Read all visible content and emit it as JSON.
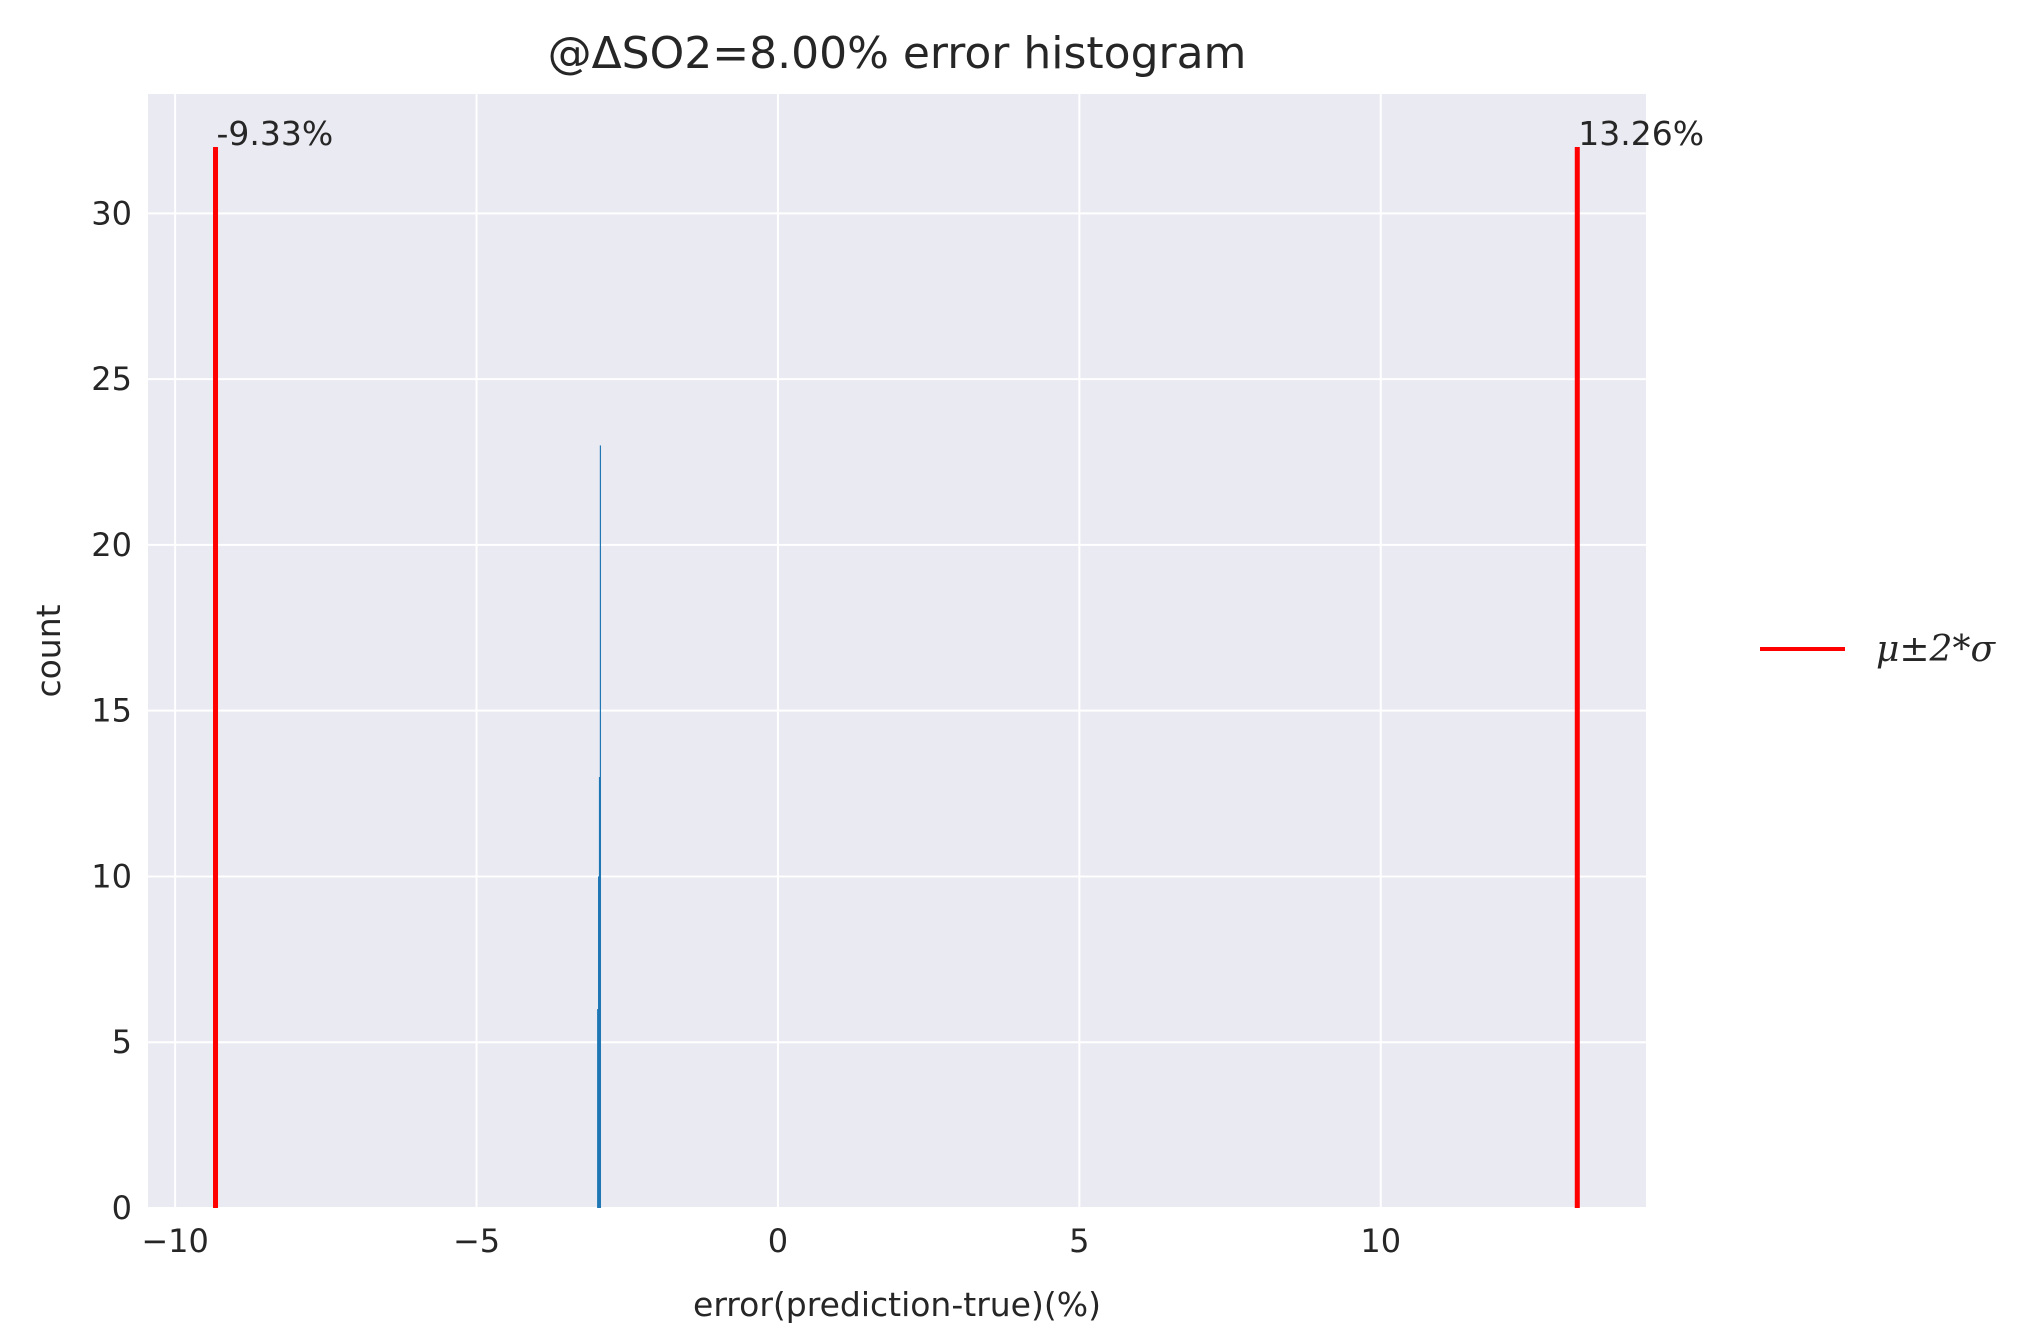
{
  "chart_data": {
    "type": "bar",
    "title": "@ΔSO2=8.00% error histogram",
    "xlabel": "error(prediction-true)(%)",
    "ylabel": "count",
    "xlim": [
      -10.45,
      14.4
    ],
    "ylim": [
      0,
      33.6
    ],
    "grid": true,
    "xticks": [
      {
        "value": -10,
        "label": "−10"
      },
      {
        "value": -5,
        "label": "−5"
      },
      {
        "value": 0,
        "label": "0"
      },
      {
        "value": 5,
        "label": "5"
      },
      {
        "value": 10,
        "label": "10"
      }
    ],
    "yticks": [
      {
        "value": 0,
        "label": "0"
      },
      {
        "value": 5,
        "label": "5"
      },
      {
        "value": 10,
        "label": "10"
      },
      {
        "value": 15,
        "label": "15"
      },
      {
        "value": 20,
        "label": "20"
      },
      {
        "value": 25,
        "label": "25"
      },
      {
        "value": 30,
        "label": "30"
      }
    ],
    "histogram_bins": [
      {
        "x0": -3.0,
        "x1": -2.985,
        "count": 6
      },
      {
        "x0": -2.985,
        "x1": -2.97,
        "count": 10
      },
      {
        "x0": -2.97,
        "x1": -2.955,
        "count": 13
      },
      {
        "x0": -2.955,
        "x1": -2.94,
        "count": 23
      }
    ],
    "bar_color": "#1f77b4",
    "vlines": [
      {
        "x": -9.33,
        "ymax": 32,
        "label": "-9.33%"
      },
      {
        "x": 13.26,
        "ymax": 32,
        "label": "13.26%"
      }
    ],
    "vline_color": "#ff0000",
    "legend": {
      "position": "right",
      "entries": [
        {
          "label": "μ±2*σ",
          "color": "#ff0000"
        }
      ]
    },
    "style": {
      "plot_background": "#eaeaf2",
      "grid_color": "#ffffff"
    }
  }
}
